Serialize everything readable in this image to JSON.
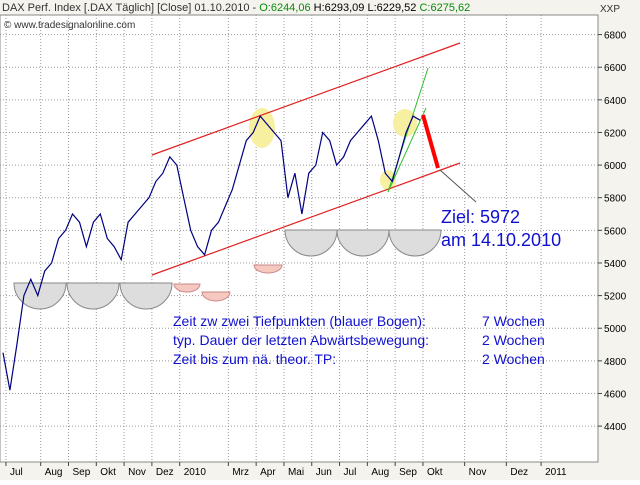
{
  "header": {
    "name": "DAX Perf. Index [.DAX Täglich] [Close] 01.10.2010 -",
    "open": "O:6244,06",
    "high": "H:6293,09",
    "low": "L:6229,52",
    "close": "C:6275,62",
    "copyright": "© www.tradesignalonline.com",
    "symbol": "XXP"
  },
  "annotations": {
    "target": "Ziel: 5972",
    "target_date": "am 14.10.2010",
    "rows": [
      [
        "Zeit zw zwei Tiefpunkten (blauer Bogen):",
        "7 Wochen"
      ],
      [
        "typ. Dauer der letzten Abwärtsbewegung:",
        "2 Wochen"
      ],
      [
        "Zeit bis zum nä. theor. TP:",
        "2 Wochen"
      ]
    ]
  },
  "chart_data": {
    "type": "line",
    "color": "#000080",
    "categories": [
      null,
      "Jul",
      null,
      null,
      null,
      null,
      "Aug",
      null,
      null,
      null,
      "Sep",
      null,
      null,
      null,
      "Okt",
      null,
      null,
      null,
      "Nov",
      null,
      null,
      null,
      "Dez",
      null,
      null,
      null,
      "2010",
      null,
      null,
      null,
      null,
      null,
      null,
      "Mrz",
      null,
      null,
      null,
      "Apr",
      null,
      null,
      null,
      "Mai",
      null,
      null,
      null,
      "Jun",
      null,
      null,
      null,
      "Jul",
      null,
      null,
      null,
      "Aug",
      null,
      null,
      null,
      "Sep",
      null,
      null,
      null,
      "Okt",
      null,
      null,
      null,
      null,
      null,
      "Nov",
      null,
      null,
      null,
      null,
      null,
      "Dez",
      null,
      null,
      null,
      null,
      "2011"
    ],
    "values": [
      4850,
      4620,
      4900,
      5200,
      5300,
      5200,
      5350,
      5400,
      5550,
      5600,
      5700,
      5650,
      5500,
      5650,
      5700,
      5550,
      5500,
      5420,
      5650,
      5700,
      5750,
      5800,
      5900,
      5950,
      6050,
      6000,
      5800,
      5600,
      5500,
      5450,
      5600,
      5650,
      5750,
      5850,
      6000,
      6150,
      6200,
      6300,
      6250,
      6200,
      6150,
      5800,
      5950,
      5700,
      5950,
      6000,
      6200,
      6150,
      6000,
      6050,
      6150,
      6200,
      6250,
      6300,
      6150,
      5950,
      5900,
      6050,
      6200,
      6300,
      6275,
      null,
      null,
      null,
      null,
      null,
      null,
      null,
      null,
      null,
      null,
      null,
      null,
      null,
      null,
      null,
      null,
      null,
      null
    ],
    "ylim": [
      4180,
      6920
    ],
    "yticks": [
      4400,
      4600,
      4800,
      5000,
      5200,
      5400,
      5600,
      5800,
      6000,
      6200,
      6400,
      6600,
      6800
    ],
    "grid": true
  }
}
